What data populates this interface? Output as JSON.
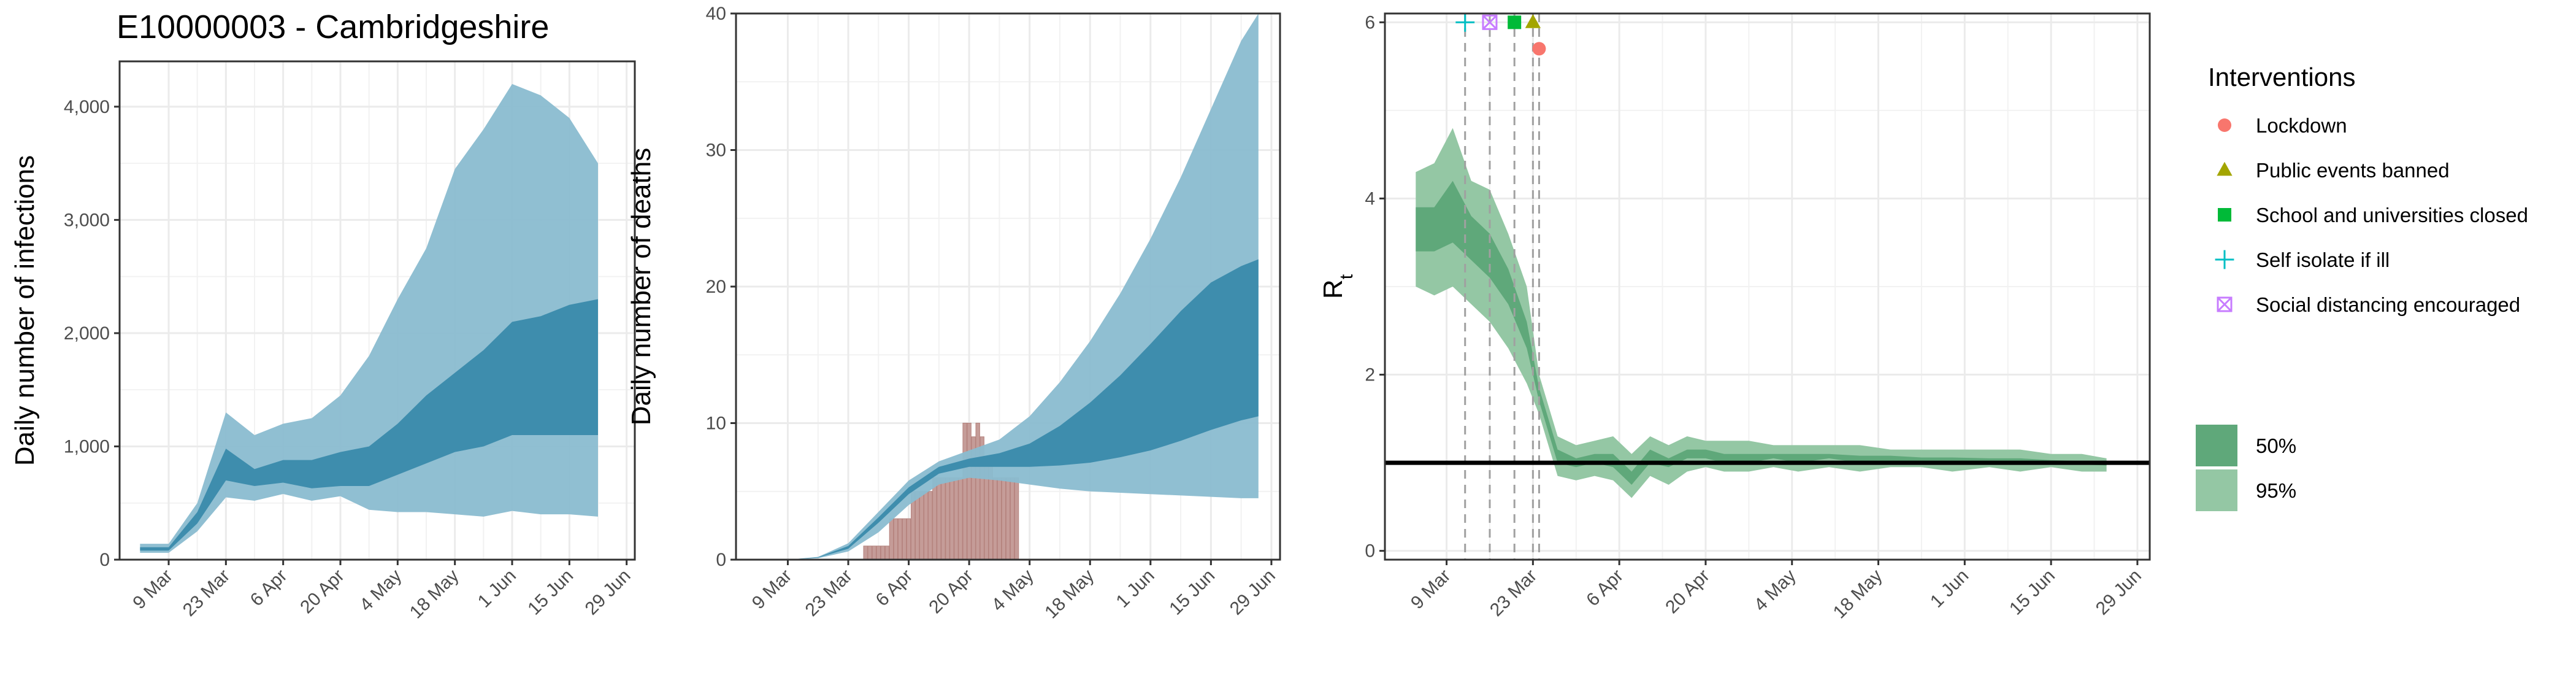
{
  "title": "E10000003 - Cambridgeshire",
  "colors": {
    "infections_ci95": "#8abcd0",
    "infections_ci50": "#3a8aab",
    "observed_bars": "#c59c98",
    "rt_ci95": "#94c7a4",
    "rt_ci50": "#5fa87a",
    "reference_line": "#000000"
  },
  "chart_data": [
    {
      "type": "area",
      "title": "E10000003 - Cambridgeshire",
      "ylabel": "Daily number of infections",
      "xlabel": "",
      "x_tick_labels": [
        "9 Mar",
        "23 Mar",
        "6 Apr",
        "20 Apr",
        "4 May",
        "18 May",
        "1 Jun",
        "15 Jun",
        "29 Jun"
      ],
      "x_range": [
        "2020-02-26",
        "2020-07-01"
      ],
      "y_tick_labels": [
        "0",
        "1,000",
        "2,000",
        "3,000",
        "4,000"
      ],
      "ylim": [
        0,
        4400
      ],
      "grid": true,
      "x": [
        "2020-03-02",
        "2020-03-09",
        "2020-03-16",
        "2020-03-23",
        "2020-03-30",
        "2020-04-06",
        "2020-04-13",
        "2020-04-20",
        "2020-04-27",
        "2020-05-04",
        "2020-05-11",
        "2020-05-18",
        "2020-05-25",
        "2020-06-01",
        "2020-06-08",
        "2020-06-15",
        "2020-06-22"
      ],
      "series": [
        {
          "values_lower": [
            60,
            60,
            250,
            550,
            520,
            580,
            520,
            560,
            440,
            420,
            420,
            400,
            380,
            430,
            400,
            400,
            380
          ]
        },
        {
          "values_upper": [
            140,
            140,
            500,
            1300,
            1100,
            1200,
            1250,
            1450,
            1800,
            2300,
            2750,
            3450,
            3800,
            4200,
            4100,
            3900,
            3500
          ]
        },
        {
          "median_band_lower": [
            80,
            80,
            320,
            700,
            650,
            680,
            630,
            650,
            650,
            750,
            850,
            950,
            1000,
            1100,
            1100,
            1100,
            1100
          ]
        },
        {
          "median_band_upper": [
            110,
            110,
            420,
            980,
            800,
            880,
            880,
            950,
            1000,
            1200,
            1450,
            1650,
            1850,
            2100,
            2150,
            2250,
            2300
          ]
        }
      ]
    },
    {
      "type": "area",
      "ylabel": "Daily number of deaths",
      "xlabel": "",
      "x_tick_labels": [
        "9 Mar",
        "23 Mar",
        "6 Apr",
        "20 Apr",
        "4 May",
        "18 May",
        "1 Jun",
        "15 Jun",
        "29 Jun"
      ],
      "x_range": [
        "2020-02-26",
        "2020-07-01"
      ],
      "y_tick_labels": [
        "0",
        "10",
        "20",
        "30",
        "40"
      ],
      "ylim": [
        0,
        40
      ],
      "grid": true,
      "x": [
        "2020-03-09",
        "2020-03-16",
        "2020-03-23",
        "2020-03-30",
        "2020-04-06",
        "2020-04-13",
        "2020-04-20",
        "2020-04-27",
        "2020-05-04",
        "2020-05-11",
        "2020-05-18",
        "2020-05-25",
        "2020-06-01",
        "2020-06-08",
        "2020-06-15",
        "2020-06-22",
        "2020-06-26"
      ],
      "series": [
        {
          "values_lower": [
            0,
            0.1,
            0.6,
            2.0,
            4.0,
            5.5,
            6.0,
            5.8,
            5.5,
            5.2,
            5.0,
            4.9,
            4.8,
            4.7,
            4.6,
            4.5,
            4.5
          ]
        },
        {
          "values_upper": [
            0,
            0.2,
            1.2,
            3.5,
            5.8,
            7.2,
            8.0,
            8.8,
            10.5,
            13.0,
            16.0,
            19.5,
            23.5,
            28.0,
            33.0,
            38.0,
            40.0
          ]
        },
        {
          "median_band_lower": [
            0,
            0.15,
            0.8,
            2.7,
            4.8,
            6.3,
            6.8,
            6.8,
            6.8,
            6.9,
            7.1,
            7.5,
            8.0,
            8.7,
            9.5,
            10.2,
            10.5
          ]
        },
        {
          "median_band_upper": [
            0,
            0.18,
            1.0,
            3.1,
            5.3,
            6.8,
            7.4,
            7.8,
            8.5,
            9.8,
            11.5,
            13.5,
            15.8,
            18.2,
            20.3,
            21.5,
            22.0
          ]
        }
      ],
      "observed_deaths": {
        "dates": [
          "2020-03-27",
          "2020-03-28",
          "2020-03-29",
          "2020-03-30",
          "2020-03-31",
          "2020-04-01",
          "2020-04-02",
          "2020-04-03",
          "2020-04-04",
          "2020-04-05",
          "2020-04-06",
          "2020-04-07",
          "2020-04-08",
          "2020-04-09",
          "2020-04-10",
          "2020-04-11",
          "2020-04-12",
          "2020-04-13",
          "2020-04-14",
          "2020-04-15",
          "2020-04-16",
          "2020-04-17",
          "2020-04-18",
          "2020-04-19",
          "2020-04-20",
          "2020-04-21",
          "2020-04-22",
          "2020-04-23",
          "2020-04-24",
          "2020-04-25",
          "2020-04-26",
          "2020-04-27",
          "2020-04-28",
          "2020-04-29",
          "2020-04-30",
          "2020-05-01"
        ],
        "values": [
          1,
          1,
          1,
          1,
          1,
          1,
          3,
          3,
          3,
          3,
          3,
          5,
          5,
          5,
          5,
          5,
          6,
          6,
          6,
          6,
          6,
          6,
          6,
          10,
          10,
          9,
          10,
          9,
          7,
          7,
          6,
          6,
          6,
          6,
          6,
          6
        ]
      }
    },
    {
      "type": "area",
      "ylabel": "R",
      "ylabel_subscript": "t",
      "xlabel": "",
      "x_tick_labels": [
        "9 Mar",
        "23 Mar",
        "6 Apr",
        "20 Apr",
        "4 May",
        "18 May",
        "1 Jun",
        "15 Jun",
        "29 Jun"
      ],
      "x_range": [
        "2020-02-28",
        "2020-07-01"
      ],
      "y_tick_labels": [
        "0",
        "2",
        "4",
        "6"
      ],
      "ylim": [
        -0.1,
        6.1
      ],
      "grid": true,
      "reference_line_y": 1,
      "x": [
        "2020-03-04",
        "2020-03-07",
        "2020-03-10",
        "2020-03-13",
        "2020-03-16",
        "2020-03-19",
        "2020-03-22",
        "2020-03-24",
        "2020-03-27",
        "2020-03-30",
        "2020-04-02",
        "2020-04-05",
        "2020-04-08",
        "2020-04-11",
        "2020-04-14",
        "2020-04-17",
        "2020-04-20",
        "2020-04-23",
        "2020-04-27",
        "2020-05-01",
        "2020-05-05",
        "2020-05-10",
        "2020-05-15",
        "2020-05-20",
        "2020-05-25",
        "2020-05-30",
        "2020-06-05",
        "2020-06-10",
        "2020-06-15",
        "2020-06-20",
        "2020-06-24"
      ],
      "series": [
        {
          "values_lower": [
            3.0,
            2.9,
            3.0,
            2.8,
            2.6,
            2.3,
            1.9,
            1.55,
            0.85,
            0.8,
            0.85,
            0.8,
            0.6,
            0.85,
            0.75,
            0.9,
            0.95,
            0.9,
            0.9,
            0.95,
            0.9,
            0.95,
            0.9,
            0.95,
            0.95,
            0.9,
            0.95,
            0.9,
            0.95,
            0.9,
            0.9
          ]
        },
        {
          "values_upper": [
            4.3,
            4.4,
            4.8,
            4.2,
            4.1,
            3.6,
            3.0,
            2.0,
            1.3,
            1.2,
            1.25,
            1.3,
            1.1,
            1.3,
            1.2,
            1.3,
            1.25,
            1.25,
            1.25,
            1.2,
            1.2,
            1.2,
            1.2,
            1.15,
            1.15,
            1.15,
            1.15,
            1.15,
            1.1,
            1.1,
            1.05
          ]
        },
        {
          "median_band_lower": [
            3.4,
            3.4,
            3.5,
            3.3,
            3.1,
            2.8,
            2.3,
            1.7,
            1.0,
            0.95,
            1.0,
            0.95,
            0.75,
            1.0,
            0.95,
            1.05,
            1.05,
            1.0,
            1.0,
            1.05,
            1.0,
            1.05,
            1.0,
            1.0,
            1.0,
            1.0,
            1.0,
            1.0,
            1.0,
            0.98,
            0.97
          ]
        },
        {
          "median_band_upper": [
            3.9,
            3.9,
            4.2,
            3.8,
            3.6,
            3.2,
            2.6,
            1.85,
            1.15,
            1.05,
            1.1,
            1.1,
            0.9,
            1.15,
            1.05,
            1.15,
            1.15,
            1.1,
            1.1,
            1.1,
            1.1,
            1.1,
            1.08,
            1.08,
            1.06,
            1.06,
            1.05,
            1.05,
            1.03,
            1.02,
            1.01
          ]
        }
      ],
      "interventions": [
        {
          "name": "Self isolate if ill",
          "date": "2020-03-12",
          "y": 6,
          "marker": "plus",
          "color": "#00bfc4"
        },
        {
          "name": "Social distancing encouraged",
          "date": "2020-03-16",
          "y": 6,
          "marker": "boxcross",
          "color": "#c77cff"
        },
        {
          "name": "School and universities closed",
          "date": "2020-03-20",
          "y": 6,
          "marker": "square",
          "color": "#00ba38"
        },
        {
          "name": "Public events banned",
          "date": "2020-03-23",
          "y": 6,
          "marker": "triangle",
          "color": "#a3a500"
        },
        {
          "name": "Lockdown",
          "date": "2020-03-24",
          "y": 5.7,
          "marker": "circle",
          "color": "#f8766d"
        }
      ]
    }
  ],
  "legend": {
    "title": "Interventions",
    "items": [
      {
        "label": "Lockdown",
        "marker": "circle",
        "color": "#f8766d"
      },
      {
        "label": "Public events banned",
        "marker": "triangle",
        "color": "#a3a500"
      },
      {
        "label": "School and universities closed",
        "marker": "square",
        "color": "#00ba38"
      },
      {
        "label": "Self isolate if ill",
        "marker": "plus",
        "color": "#00bfc4"
      },
      {
        "label": "Social distancing encouraged",
        "marker": "boxcross",
        "color": "#c77cff"
      }
    ],
    "ci_items": [
      {
        "label": "50%",
        "color": "#5fa87a"
      },
      {
        "label": "95%",
        "color": "#94c7a4"
      }
    ]
  }
}
